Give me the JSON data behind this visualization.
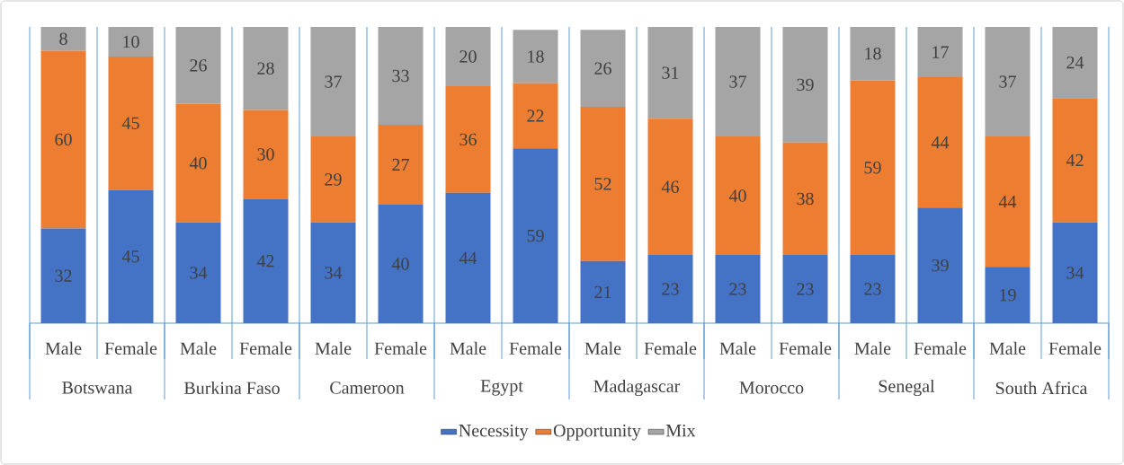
{
  "chart_data": {
    "type": "bar",
    "stacked": true,
    "data_labels": true,
    "legend": "bottom",
    "categories": [
      "Male",
      "Female",
      "Male",
      "Female",
      "Male",
      "Female",
      "Male",
      "Female",
      "Male",
      "Female",
      "Male",
      "Female",
      "Male",
      "Female",
      "Male",
      "Female"
    ],
    "annotations": [
      "Botswana",
      "Burkina Faso",
      "Cameroon",
      "Egypt",
      "Madagascar",
      "Morocco",
      "Senegal",
      "South Africa"
    ],
    "series": [
      {
        "name": "Necessity",
        "color": "#4472c4",
        "values": [
          32,
          45,
          34,
          42,
          34,
          40,
          44,
          59,
          21,
          23,
          23,
          23,
          23,
          39,
          19,
          34
        ]
      },
      {
        "name": "Opportunity",
        "color": "#ed7d31",
        "values": [
          60,
          45,
          40,
          30,
          29,
          27,
          36,
          22,
          52,
          46,
          40,
          38,
          59,
          44,
          44,
          42
        ]
      },
      {
        "name": "Mix",
        "color": "#a5a5a5",
        "values": [
          8,
          10,
          26,
          28,
          37,
          33,
          20,
          18,
          26,
          31,
          37,
          39,
          18,
          17,
          37,
          24
        ]
      }
    ]
  }
}
